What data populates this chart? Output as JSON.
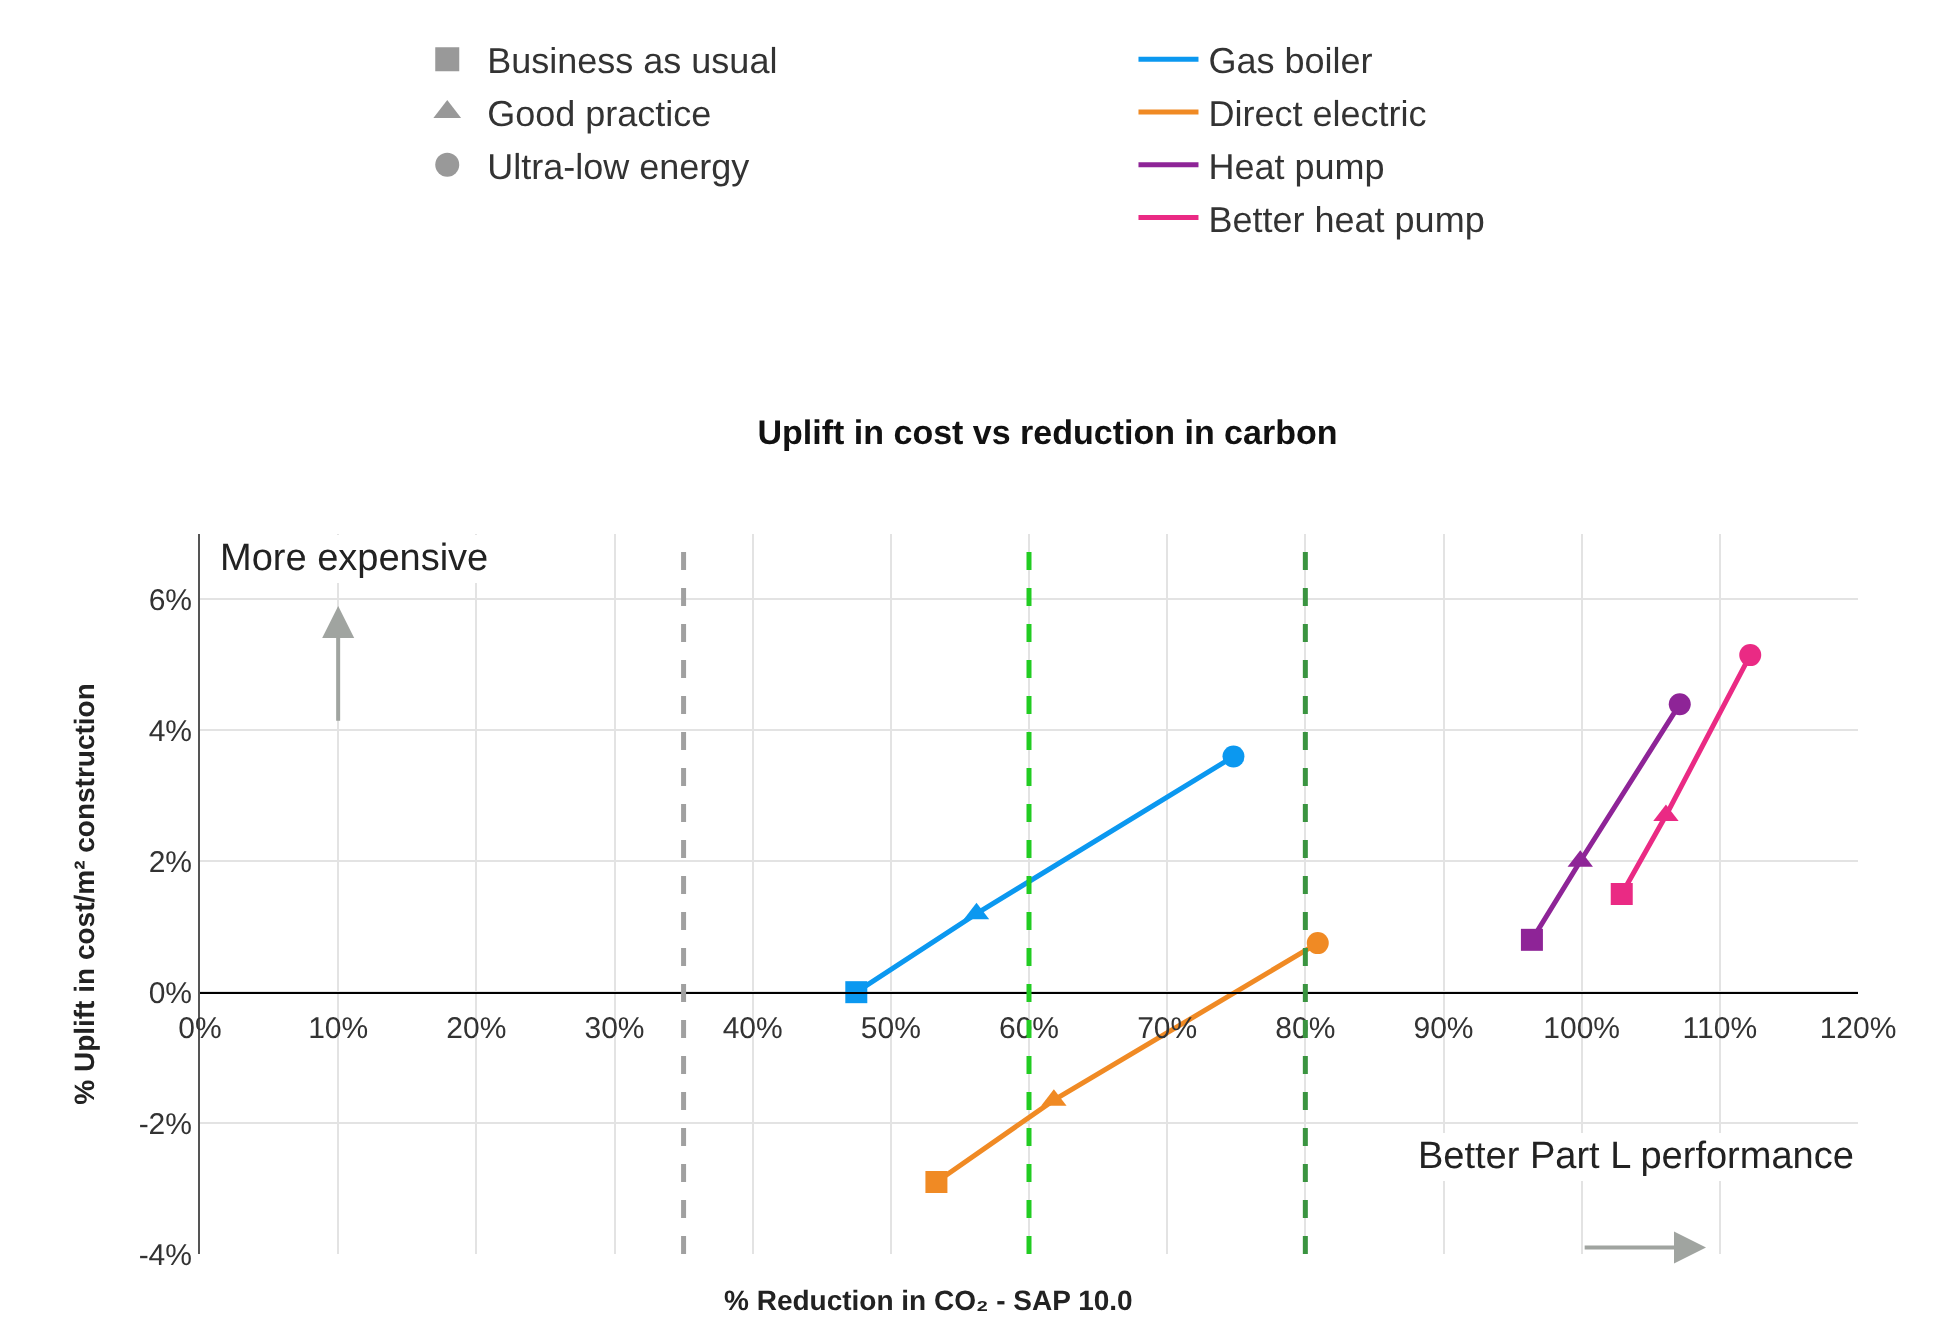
{
  "chart_data": {
    "type": "line",
    "title": "Uplift in cost vs reduction in carbon",
    "xlabel": "% Reduction in CO₂ - SAP 10.0",
    "ylabel": "% Uplift in cost/m² construction",
    "xlim": [
      0,
      120
    ],
    "xticks": [
      {
        "value": 0,
        "label": "0%"
      },
      {
        "value": 10,
        "label": "10%"
      },
      {
        "value": 20,
        "label": "20%"
      },
      {
        "value": 30,
        "label": "30%"
      },
      {
        "value": 40,
        "label": "40%"
      },
      {
        "value": 50,
        "label": "50%"
      },
      {
        "value": 60,
        "label": "60%"
      },
      {
        "value": 70,
        "label": "70%"
      },
      {
        "value": 80,
        "label": "80%"
      },
      {
        "value": 90,
        "label": "90%"
      },
      {
        "value": 100,
        "label": "100%"
      },
      {
        "value": 110,
        "label": "110%"
      },
      {
        "value": 120,
        "label": "120%"
      }
    ],
    "ylim": [
      -4,
      7
    ],
    "yticks": [
      {
        "value": -4,
        "label": "-4%"
      },
      {
        "value": -2,
        "label": "-2%"
      },
      {
        "value": 0,
        "label": "0%"
      },
      {
        "value": 2,
        "label": "2%"
      },
      {
        "value": 4,
        "label": "4%"
      },
      {
        "value": 6,
        "label": "6%"
      }
    ],
    "grid": true,
    "legend": "top",
    "series": [
      {
        "name": "Business as usual",
        "type": "scatter",
        "color": "#999999",
        "marker": "square"
      },
      {
        "name": "Good practice",
        "type": "scatter",
        "color": "#999999",
        "marker": "triangle"
      },
      {
        "name": "Ultra-low energy",
        "type": "scatter",
        "color": "#999999",
        "marker": "circle"
      },
      {
        "name": "Gas boiler",
        "color": "#0b98f0",
        "marker": [
          "square",
          "triangle",
          "circle"
        ],
        "x": [
          47.5,
          56.2,
          74.8
        ],
        "values": [
          0,
          1.2,
          3.6
        ]
      },
      {
        "name": "Direct electric",
        "color": "#f08a24",
        "marker": [
          "square",
          "triangle",
          "circle"
        ],
        "x": [
          53.3,
          61.8,
          80.9
        ],
        "values": [
          -2.9,
          -1.65,
          0.75
        ]
      },
      {
        "name": "Heat pump",
        "color": "#8e2497",
        "marker": [
          "square",
          "triangle",
          "circle"
        ],
        "x": [
          96.4,
          99.9,
          107.1
        ],
        "values": [
          0.8,
          2.0,
          4.4
        ]
      },
      {
        "name": "Better heat pump",
        "color": "#ea2a84",
        "marker": [
          "square",
          "triangle",
          "circle"
        ],
        "x": [
          102.9,
          106.1,
          112.2
        ],
        "values": [
          1.5,
          2.7,
          5.15
        ]
      }
    ],
    "ref_lines": [
      {
        "axis": "x",
        "value": 35,
        "color": "#a0a0a0",
        "line_style": "dashed"
      },
      {
        "axis": "x",
        "value": 60,
        "color": "#22cc22",
        "line_style": "dashed"
      },
      {
        "axis": "x",
        "value": 80,
        "color": "#3a9440",
        "line_style": "dashed"
      }
    ],
    "annotations": [
      "More expensive",
      "Better Part L performance"
    ]
  }
}
